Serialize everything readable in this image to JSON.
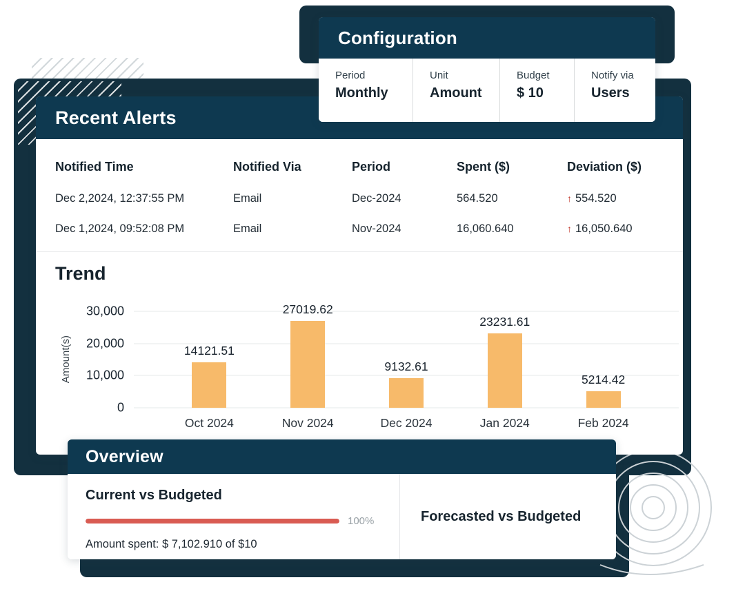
{
  "colors": {
    "header-bg": "#0e3950",
    "shadow": "#13303f",
    "bar": "#f7ba6a",
    "progress": "#d95b52",
    "deviation": "#c2392c"
  },
  "icons": {
    "deviation_up": "↑"
  },
  "configuration": {
    "title": "Configuration",
    "fields": [
      {
        "label": "Period",
        "value": "Monthly"
      },
      {
        "label": "Unit",
        "value": "Amount"
      },
      {
        "label": "Budget",
        "value": "$ 10"
      },
      {
        "label": "Notify via",
        "value": "Users"
      }
    ]
  },
  "recent_alerts": {
    "title": "Recent Alerts",
    "columns": [
      "Notified Time",
      "Notified Via",
      "Period",
      "Spent ($)",
      "Deviation ($)"
    ],
    "rows": [
      {
        "time": "Dec 2,2024, 12:37:55 PM",
        "via": "Email",
        "period": "Dec-2024",
        "spent": "564.520",
        "deviation": "554.520"
      },
      {
        "time": "Dec 1,2024, 09:52:08 PM",
        "via": "Email",
        "period": "Nov-2024",
        "spent": "16,060.640",
        "deviation": "16,050.640"
      }
    ]
  },
  "trend": {
    "title": "Trend"
  },
  "chart_data": {
    "type": "bar",
    "title": "Trend",
    "categories": [
      "Oct 2024",
      "Nov 2024",
      "Dec 2024",
      "Jan 2024",
      "Feb 2024"
    ],
    "values": [
      14121.51,
      27019.62,
      9132.61,
      23231.61,
      5214.42
    ],
    "labels": [
      "14121.51",
      "27019.62",
      "9132.61",
      "23231.61",
      "5214.42"
    ],
    "xlabel": "",
    "ylabel": "Amount(s)",
    "yticks": [
      "30,000",
      "20,000",
      "10,000",
      "0"
    ],
    "ylim": [
      0,
      30000
    ],
    "grid": true,
    "legend": false
  },
  "overview": {
    "title": "Overview",
    "current": {
      "title": "Current vs Budgeted",
      "progress_percent": 100,
      "progress_label": "100%",
      "amount_text": "Amount spent: $ 7,102.910 of $10"
    },
    "forecast": {
      "title": "Forecasted vs Budgeted"
    }
  }
}
